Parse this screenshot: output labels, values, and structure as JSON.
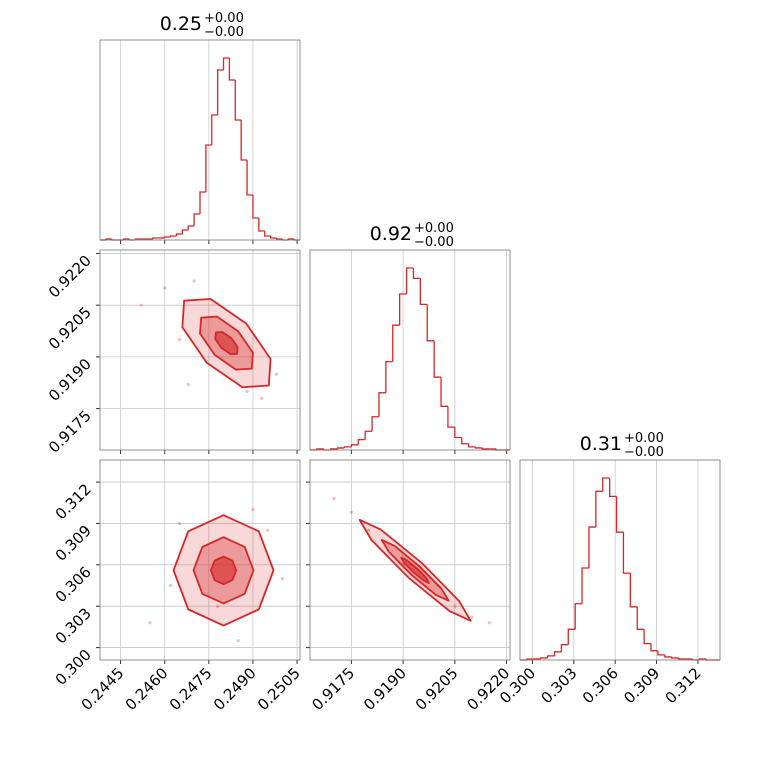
{
  "chart_data": {
    "type": "corner",
    "color": "#d62728",
    "grid": true,
    "params": [
      {
        "title": {
          "value": "0.25",
          "upper": "+0.00",
          "lower": "−0.00"
        },
        "lim": [
          0.2438,
          0.2506
        ],
        "ticks": [
          0.2445,
          {
            "value": 0.246,
            "label": "0.2460"
          },
          0.2475,
          {
            "value": 0.249,
            "label": "0.2490"
          },
          0.2505
        ],
        "hist": {
          "bins": [
            0.2438,
            0.244,
            0.2442,
            0.2444,
            0.2446,
            0.2448,
            0.245,
            0.2452,
            0.2454,
            0.2456,
            0.2458,
            0.246,
            0.2462,
            0.2464,
            0.2466,
            0.2468,
            0.247,
            0.2472,
            0.2474,
            0.2476,
            0.2478,
            0.248,
            0.2482,
            0.2484,
            0.2486,
            0.2488,
            0.249,
            0.2492,
            0.2494,
            0.2496,
            0.2498,
            0.25,
            0.2502,
            0.2504,
            0.2506
          ],
          "counts": [
            0,
            1,
            0,
            0,
            1,
            0,
            1,
            1,
            1,
            2,
            2,
            3,
            4,
            6,
            10,
            14,
            26,
            48,
            95,
            125,
            170,
            182,
            160,
            120,
            80,
            45,
            22,
            9,
            4,
            2,
            1,
            0,
            1,
            0
          ]
        }
      },
      {
        "title": {
          "value": "0.92",
          "upper": "+0.00",
          "lower": "−0.00"
        },
        "lim": [
          0.9163,
          0.9221
        ],
        "ticks": [
          0.9175,
          {
            "value": 0.919,
            "label": "0.9190"
          },
          0.9205,
          {
            "value": 0.922,
            "label": "0.9220"
          }
        ],
        "hist": {
          "bins": [
            0.9163,
            0.9165,
            0.9167,
            0.9169,
            0.9171,
            0.9173,
            0.9175,
            0.9177,
            0.9179,
            0.9181,
            0.9183,
            0.9185,
            0.9187,
            0.9189,
            0.9191,
            0.9193,
            0.9195,
            0.9197,
            0.9199,
            0.9201,
            0.9203,
            0.9205,
            0.9207,
            0.9209,
            0.9211,
            0.9213,
            0.9215,
            0.9217,
            0.9219,
            0.9221
          ],
          "counts": [
            0,
            1,
            0,
            1,
            2,
            3,
            5,
            10,
            18,
            32,
            55,
            85,
            120,
            150,
            175,
            165,
            140,
            105,
            70,
            42,
            22,
            12,
            6,
            3,
            2,
            1,
            1,
            0,
            0
          ]
        }
      },
      {
        "title": {
          "value": "0.31",
          "upper": "+0.00",
          "lower": "−0.00"
        },
        "lim": [
          0.2991,
          0.3136
        ],
        "ticks": [
          {
            "value": 0.3,
            "label": "0.300"
          },
          0.303,
          0.306,
          0.309,
          0.312
        ],
        "hist": {
          "bins": [
            0.2991,
            0.2996,
            0.3001,
            0.3006,
            0.3011,
            0.3016,
            0.3021,
            0.3026,
            0.3031,
            0.3036,
            0.3041,
            0.3046,
            0.3051,
            0.3056,
            0.3061,
            0.3066,
            0.3071,
            0.3076,
            0.3081,
            0.3086,
            0.3091,
            0.3096,
            0.3101,
            0.3106,
            0.3111,
            0.3116,
            0.3121,
            0.3126,
            0.3131,
            0.3136
          ],
          "counts": [
            0,
            1,
            1,
            2,
            4,
            8,
            15,
            30,
            55,
            90,
            130,
            165,
            178,
            160,
            125,
            85,
            52,
            30,
            16,
            9,
            5,
            3,
            2,
            1,
            1,
            0,
            1,
            0,
            0
          ]
        }
      }
    ],
    "pairs": [
      [
        {
          "points": {
            "x": [
              0.2452,
              0.246,
              0.2468,
              0.2488,
              0.2493,
              0.247,
              0.2498,
              0.2465
            ],
            "y": [
              0.9205,
              0.921,
              0.9182,
              0.918,
              0.9178,
              0.9212,
              0.9185,
              0.9195
            ]
          },
          "contours": [
            {
              "x": [
                0.24954,
                0.2496,
                0.24877,
                0.24756,
                0.24666,
                0.2466,
                0.24743,
                0.24864
              ],
              "y": [
                0.91817,
                0.91894,
                0.91997,
                0.92068,
                0.92063,
                0.91986,
                0.91883,
                0.91812
              ]
            },
            {
              "x": [
                0.24896,
                0.249,
                0.2485,
                0.24778,
                0.24724,
                0.2472,
                0.2477,
                0.24842
              ],
              "y": [
                0.91866,
                0.91912,
                0.91974,
                0.92017,
                0.92014,
                0.91968,
                0.91906,
                0.91863
              ]
            },
            {
              "x": [
                0.24846,
                0.24848,
                0.24827,
                0.24796,
                0.24774,
                0.24772,
                0.24793,
                0.24824
              ],
              "y": [
                0.91909,
                0.91928,
                0.91954,
                0.91972,
                0.91971,
                0.91952,
                0.91926,
                0.91908
              ]
            }
          ]
        }
      ],
      [
        {
          "points": {
            "x": [
              0.2455,
              0.2462,
              0.249,
              0.2495,
              0.2478,
              0.25,
              0.2465,
              0.2485
            ],
            "y": [
              0.3018,
              0.3045,
              0.31,
              0.3085,
              0.303,
              0.305,
              0.309,
              0.3005
            ]
          },
          "contours": [
            {
              "x": [
                0.2497,
                0.2492,
                0.248,
                0.2468,
                0.2463,
                0.2468,
                0.248,
                0.2492
              ],
              "y": [
                0.3056,
                0.30843,
                0.3096,
                0.30843,
                0.3056,
                0.30277,
                0.3016,
                0.30277
              ]
            },
            {
              "x": [
                0.24902,
                0.24872,
                0.248,
                0.24728,
                0.24698,
                0.24728,
                0.248,
                0.24872
              ],
              "y": [
                0.3056,
                0.3073,
                0.308,
                0.3073,
                0.3056,
                0.3039,
                0.3032,
                0.3039
              ]
            },
            {
              "x": [
                0.24843,
                0.2483,
                0.248,
                0.2477,
                0.24757,
                0.2477,
                0.248,
                0.2483
              ],
              "y": [
                0.3056,
                0.30631,
                0.3066,
                0.30631,
                0.3056,
                0.30489,
                0.3046,
                0.30489
              ]
            }
          ]
        },
        {
          "points": {
            "x": [
              0.917,
              0.9175,
              0.918,
              0.9205,
              0.921,
              0.9215,
              0.919,
              0.92
            ],
            "y": [
              0.3108,
              0.3098,
              0.3085,
              0.303,
              0.3022,
              0.3018,
              0.306,
              0.3045
            ]
          },
          "contours": [
            {
              "x": [
                0.92096,
                0.92062,
                0.91954,
                0.91835,
                0.91774,
                0.91808,
                0.91916,
                0.92035
              ],
              "y": [
                0.30194,
                0.30339,
                0.30614,
                0.30856,
                0.30926,
                0.30781,
                0.30506,
                0.30264
              ]
            },
            {
              "x": [
                0.92032,
                0.92011,
                0.91946,
                0.91875,
                0.91838,
                0.91859,
                0.91924,
                0.91995
              ],
              "y": [
                0.3034,
                0.30427,
                0.30592,
                0.30738,
                0.3078,
                0.30693,
                0.30528,
                0.30382
              ]
            },
            {
              "x": [
                0.91975,
                0.91967,
                0.9194,
                0.9191,
                0.91895,
                0.91903,
                0.9193,
                0.9196
              ],
              "y": [
                0.30468,
                0.30505,
                0.30574,
                0.30634,
                0.30652,
                0.30615,
                0.30546,
                0.30486
              ]
            }
          ]
        }
      ]
    ]
  }
}
